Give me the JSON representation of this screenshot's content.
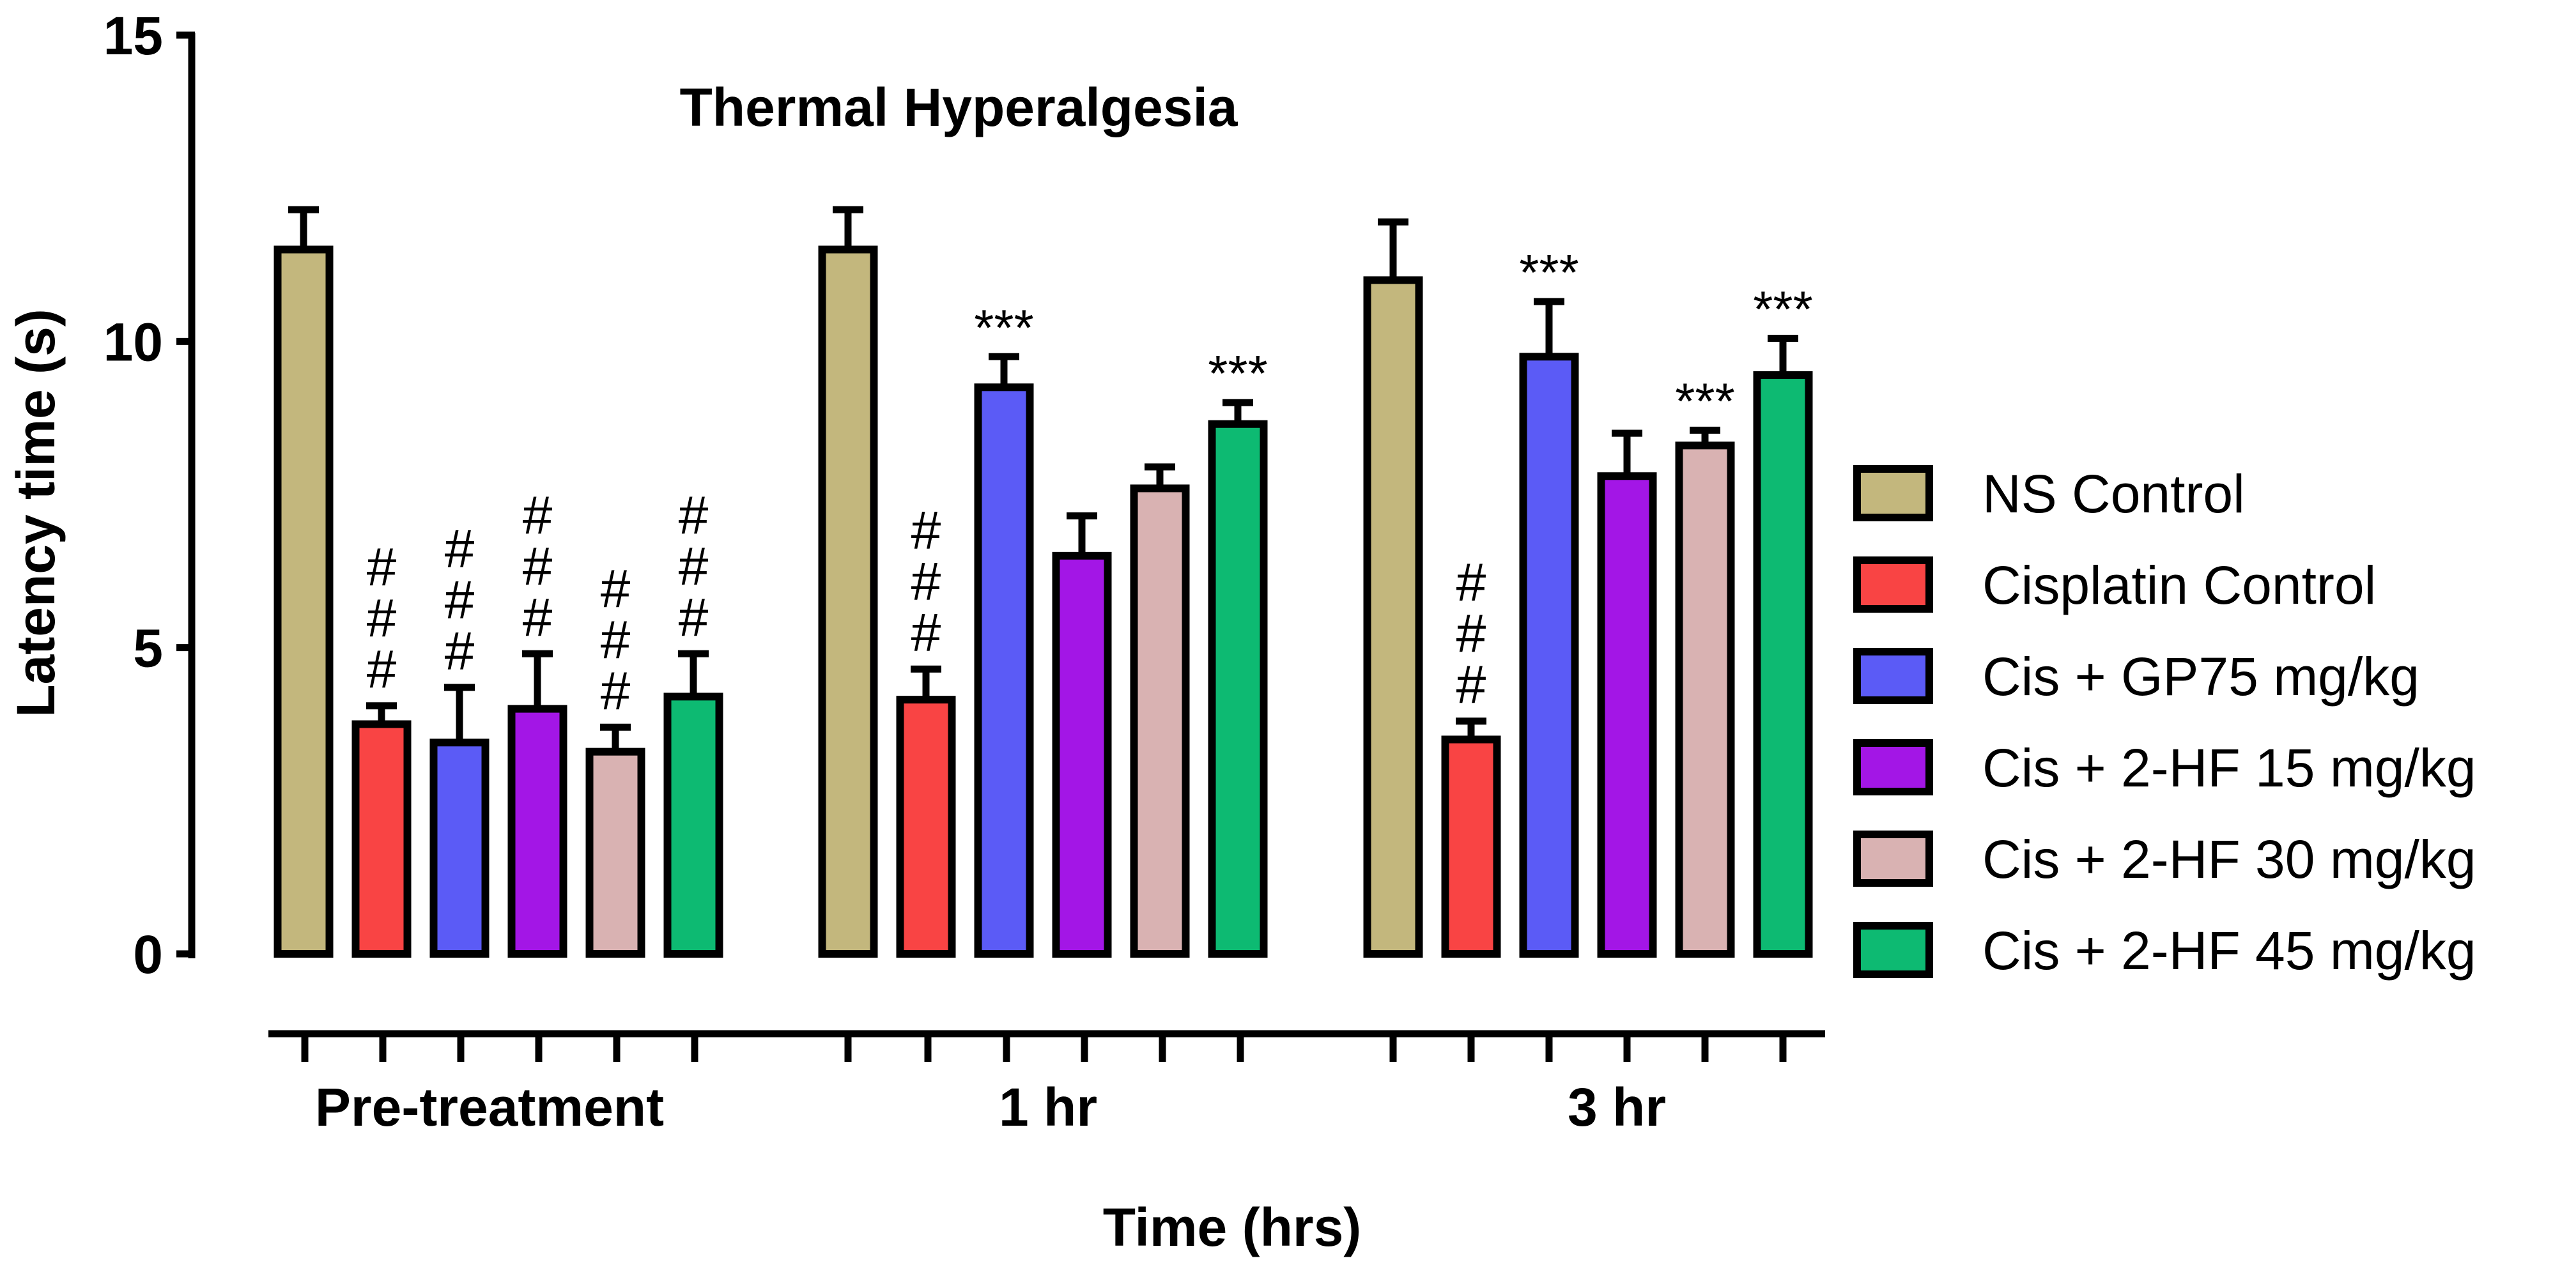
{
  "chart_data": {
    "type": "bar",
    "title": "Thermal Hyperalgesia",
    "xlabel": "Time (hrs)",
    "ylabel": "Latency time (s)",
    "ylim": [
      0,
      15
    ],
    "yticks": [
      0,
      5,
      10,
      15
    ],
    "grid": false,
    "legend_position": "right",
    "categories": [
      "Pre-treatment",
      "1 hr",
      "3 hr"
    ],
    "series": [
      {
        "name": "NS Control",
        "color": "#C3B77D",
        "values": [
          11.5,
          11.5,
          11.0
        ],
        "errors": [
          0.65,
          0.65,
          0.95
        ],
        "annotations": [
          "",
          "",
          ""
        ]
      },
      {
        "name": "Cisplatin Control",
        "color": "#F94444",
        "values": [
          3.75,
          4.15,
          3.5
        ],
        "errors": [
          0.3,
          0.5,
          0.3
        ],
        "annotations": [
          "###",
          "###",
          "###"
        ]
      },
      {
        "name": "Cis + GP75 mg/kg",
        "color": "#5B5BF6",
        "values": [
          3.45,
          9.25,
          9.75
        ],
        "errors": [
          0.9,
          0.5,
          0.9
        ],
        "annotations": [
          "###",
          "***",
          "***"
        ]
      },
      {
        "name": "Cis + 2-HF 15 mg/kg",
        "color": "#A316E6",
        "values": [
          4.0,
          6.5,
          7.8
        ],
        "errors": [
          0.9,
          0.65,
          0.7
        ],
        "annotations": [
          "###",
          "",
          ""
        ]
      },
      {
        "name": "Cis + 2-HF 30 mg/kg",
        "color": "#D9B2B2",
        "values": [
          3.3,
          7.6,
          8.3
        ],
        "errors": [
          0.4,
          0.35,
          0.25
        ],
        "annotations": [
          "###",
          "",
          "***"
        ]
      },
      {
        "name": "Cis + 2-HF 45 mg/kg",
        "color": "#0DBA72",
        "values": [
          4.2,
          8.65,
          9.45
        ],
        "errors": [
          0.7,
          0.35,
          0.6
        ],
        "annotations": [
          "###",
          "***",
          "***"
        ]
      }
    ]
  }
}
